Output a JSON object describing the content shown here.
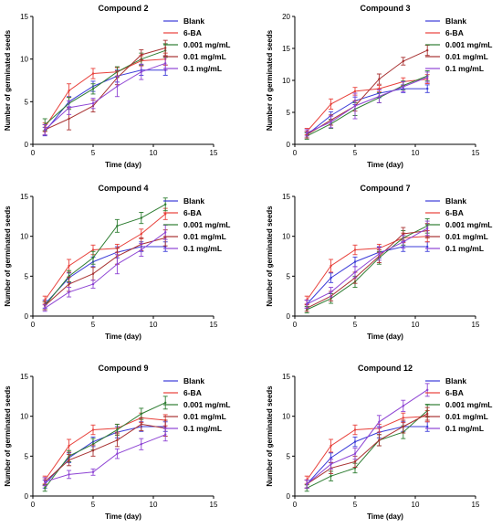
{
  "figure": {
    "legend_position": "top-right",
    "grid": false
  },
  "chart_data": [
    {
      "type": "line",
      "title": "Compound 2",
      "xlabel": "Time (day)",
      "ylabel": "Number of germinated seeds",
      "xlim": [
        0,
        15
      ],
      "ylim": [
        0,
        15
      ],
      "xticks": [
        0,
        5,
        10,
        15
      ],
      "yticks": [
        0,
        5,
        10,
        15
      ],
      "x": [
        1,
        3,
        5,
        7,
        9,
        11
      ],
      "series": [
        {
          "name": "Blank",
          "color": "#3b3bd8",
          "values": [
            1.5,
            5.0,
            6.8,
            8.0,
            8.7,
            8.7
          ],
          "errors": [
            0.5,
            0.6,
            0.6,
            0.7,
            0.6,
            0.6
          ]
        },
        {
          "name": "6-BA",
          "color": "#e8403a",
          "values": [
            2.0,
            6.3,
            8.3,
            8.5,
            9.8,
            10.0
          ],
          "errors": [
            0.5,
            0.8,
            0.6,
            0.5,
            0.6,
            0.7
          ]
        },
        {
          "name": "0.001 mg/mL",
          "color": "#2e7d32",
          "values": [
            2.3,
            4.8,
            6.5,
            8.5,
            10.0,
            11.0
          ],
          "errors": [
            0.7,
            0.7,
            0.6,
            0.6,
            0.7,
            0.8
          ]
        },
        {
          "name": "0.01 mg/mL",
          "color": "#a83232",
          "values": [
            1.7,
            3.0,
            4.5,
            7.8,
            10.5,
            11.3
          ],
          "errors": [
            0.6,
            1.3,
            0.7,
            0.8,
            0.6,
            0.9
          ]
        },
        {
          "name": "0.1 mg/mL",
          "color": "#8e44d4",
          "values": [
            1.7,
            4.3,
            4.8,
            6.8,
            8.5,
            9.5
          ],
          "errors": [
            0.6,
            0.8,
            0.6,
            1.2,
            0.9,
            0.8
          ]
        }
      ]
    },
    {
      "type": "line",
      "title": "Compound 3",
      "xlabel": "Time (day)",
      "ylabel": "Number of germinated seeds",
      "xlim": [
        0,
        15
      ],
      "ylim": [
        0,
        20
      ],
      "xticks": [
        0,
        5,
        10,
        15
      ],
      "yticks": [
        0,
        5,
        10,
        15,
        20
      ],
      "x": [
        1,
        3,
        5,
        7,
        9,
        11
      ],
      "series": [
        {
          "name": "Blank",
          "color": "#3b3bd8",
          "values": [
            1.5,
            4.5,
            6.8,
            8.0,
            8.7,
            8.7
          ],
          "errors": [
            0.5,
            0.6,
            0.6,
            0.7,
            0.6,
            0.6
          ]
        },
        {
          "name": "6-BA",
          "color": "#e8403a",
          "values": [
            2.0,
            6.3,
            8.3,
            8.7,
            9.8,
            10.2
          ],
          "errors": [
            0.5,
            0.8,
            0.6,
            0.5,
            0.6,
            0.7
          ]
        },
        {
          "name": "0.001 mg/mL",
          "color": "#2e7d32",
          "values": [
            1.3,
            3.2,
            5.5,
            7.3,
            9.2,
            10.7
          ],
          "errors": [
            0.5,
            0.7,
            1.0,
            0.8,
            0.7,
            0.8
          ]
        },
        {
          "name": "0.01 mg/mL",
          "color": "#a83232",
          "values": [
            1.5,
            3.8,
            6.0,
            10.2,
            13.0,
            14.7
          ],
          "errors": [
            0.5,
            0.8,
            0.8,
            0.8,
            0.6,
            0.8
          ]
        },
        {
          "name": "0.1 mg/mL",
          "color": "#8e44d4",
          "values": [
            1.8,
            3.5,
            6.0,
            7.5,
            9.0,
            10.5
          ],
          "errors": [
            0.5,
            0.9,
            2.0,
            1.0,
            0.8,
            0.8
          ]
        }
      ]
    },
    {
      "type": "line",
      "title": "Compound 4",
      "xlabel": "Time (day)",
      "ylabel": "Number of germinated seeds",
      "xlim": [
        0,
        15
      ],
      "ylim": [
        0,
        15
      ],
      "xticks": [
        0,
        5,
        10,
        15
      ],
      "yticks": [
        0,
        5,
        10,
        15
      ],
      "x": [
        1,
        3,
        5,
        7,
        9,
        11
      ],
      "series": [
        {
          "name": "Blank",
          "color": "#3b3bd8",
          "values": [
            1.5,
            4.8,
            6.8,
            8.0,
            8.7,
            8.7
          ],
          "errors": [
            0.5,
            0.6,
            0.6,
            0.7,
            0.6,
            0.6
          ]
        },
        {
          "name": "6-BA",
          "color": "#e8403a",
          "values": [
            2.0,
            6.3,
            8.3,
            8.5,
            10.3,
            12.8
          ],
          "errors": [
            0.5,
            0.8,
            0.6,
            0.5,
            0.6,
            0.7
          ]
        },
        {
          "name": "0.001 mg/mL",
          "color": "#2e7d32",
          "values": [
            1.3,
            5.0,
            7.3,
            11.3,
            12.3,
            14.0
          ],
          "errors": [
            0.5,
            0.7,
            0.8,
            0.8,
            0.7,
            0.8
          ]
        },
        {
          "name": "0.01 mg/mL",
          "color": "#a83232",
          "values": [
            1.3,
            4.0,
            5.3,
            7.5,
            9.0,
            9.8
          ],
          "errors": [
            0.5,
            0.9,
            0.8,
            1.0,
            0.8,
            1.0
          ]
        },
        {
          "name": "0.1 mg/mL",
          "color": "#8e44d4",
          "values": [
            1.0,
            3.0,
            4.0,
            6.5,
            8.3,
            10.5
          ],
          "errors": [
            0.4,
            0.6,
            0.5,
            1.2,
            0.8,
            0.9
          ]
        }
      ]
    },
    {
      "type": "line",
      "title": "Compound 7",
      "xlabel": "Time (day)",
      "ylabel": "Number of germinated seeds",
      "xlim": [
        0,
        15
      ],
      "ylim": [
        0,
        15
      ],
      "xticks": [
        0,
        5,
        10,
        15
      ],
      "yticks": [
        0,
        5,
        10,
        15
      ],
      "x": [
        1,
        3,
        5,
        7,
        9,
        11
      ],
      "series": [
        {
          "name": "Blank",
          "color": "#3b3bd8",
          "values": [
            1.5,
            4.8,
            6.8,
            8.0,
            8.7,
            8.7
          ],
          "errors": [
            0.5,
            0.6,
            0.6,
            0.7,
            0.6,
            0.6
          ]
        },
        {
          "name": "6-BA",
          "color": "#e8403a",
          "values": [
            2.0,
            6.3,
            8.3,
            8.5,
            9.8,
            10.0
          ],
          "errors": [
            0.5,
            0.8,
            0.6,
            0.5,
            0.6,
            0.7
          ]
        },
        {
          "name": "0.001 mg/mL",
          "color": "#2e7d32",
          "values": [
            0.8,
            2.2,
            4.3,
            7.3,
            9.8,
            11.3
          ],
          "errors": [
            0.4,
            0.6,
            0.7,
            0.8,
            0.9,
            0.9
          ]
        },
        {
          "name": "0.01 mg/mL",
          "color": "#a83232",
          "values": [
            1.0,
            2.5,
            4.8,
            7.5,
            10.3,
            10.7
          ],
          "errors": [
            0.4,
            0.6,
            0.7,
            0.8,
            0.8,
            0.9
          ]
        },
        {
          "name": "0.1 mg/mL",
          "color": "#8e44d4",
          "values": [
            1.5,
            3.0,
            5.5,
            7.8,
            9.3,
            11.0
          ],
          "errors": [
            0.5,
            0.6,
            0.7,
            0.8,
            0.8,
            0.9
          ]
        }
      ]
    },
    {
      "type": "line",
      "title": "Compound 9",
      "xlabel": "Time (day)",
      "ylabel": "Number of germinated seeds",
      "xlim": [
        0,
        15
      ],
      "ylim": [
        0,
        15
      ],
      "xticks": [
        0,
        5,
        10,
        15
      ],
      "yticks": [
        0,
        5,
        10,
        15
      ],
      "x": [
        1,
        3,
        5,
        7,
        9,
        11
      ],
      "series": [
        {
          "name": "Blank",
          "color": "#3b3bd8",
          "values": [
            1.5,
            4.8,
            6.8,
            8.0,
            8.7,
            8.7
          ],
          "errors": [
            0.5,
            0.6,
            0.6,
            0.7,
            0.6,
            0.6
          ]
        },
        {
          "name": "6-BA",
          "color": "#e8403a",
          "values": [
            2.0,
            6.3,
            8.3,
            8.5,
            9.8,
            9.5
          ],
          "errors": [
            0.5,
            0.8,
            0.6,
            0.5,
            0.6,
            0.7
          ]
        },
        {
          "name": "0.001 mg/mL",
          "color": "#2e7d32",
          "values": [
            1.0,
            5.0,
            6.5,
            8.3,
            10.3,
            11.7
          ],
          "errors": [
            0.4,
            0.7,
            0.7,
            0.7,
            0.7,
            0.8
          ]
        },
        {
          "name": "0.01 mg/mL",
          "color": "#a83232",
          "values": [
            1.8,
            4.5,
            5.7,
            7.0,
            9.0,
            8.5
          ],
          "errors": [
            0.5,
            0.7,
            0.7,
            0.8,
            0.8,
            1.0
          ]
        },
        {
          "name": "0.1 mg/mL",
          "color": "#8e44d4",
          "values": [
            1.8,
            2.7,
            3.0,
            5.3,
            6.5,
            7.7
          ],
          "errors": [
            0.5,
            0.5,
            0.4,
            0.6,
            0.7,
            0.8
          ]
        }
      ]
    },
    {
      "type": "line",
      "title": "Compound 12",
      "xlabel": "Time (day)",
      "ylabel": "Number of germinated seeds",
      "xlim": [
        0,
        15
      ],
      "ylim": [
        0,
        15
      ],
      "xticks": [
        0,
        5,
        10,
        15
      ],
      "yticks": [
        0,
        5,
        10,
        15
      ],
      "x": [
        1,
        3,
        5,
        7,
        9,
        11
      ],
      "series": [
        {
          "name": "Blank",
          "color": "#3b3bd8",
          "values": [
            1.5,
            4.8,
            6.8,
            8.0,
            8.7,
            8.7
          ],
          "errors": [
            0.5,
            0.6,
            0.6,
            0.7,
            0.6,
            0.6
          ]
        },
        {
          "name": "6-BA",
          "color": "#e8403a",
          "values": [
            2.0,
            6.3,
            8.3,
            8.5,
            9.8,
            10.0
          ],
          "errors": [
            0.5,
            0.8,
            0.6,
            0.5,
            0.6,
            0.7
          ]
        },
        {
          "name": "0.001 mg/mL",
          "color": "#2e7d32",
          "values": [
            1.0,
            2.5,
            3.5,
            7.0,
            8.0,
            10.7
          ],
          "errors": [
            0.4,
            0.6,
            0.6,
            0.7,
            0.8,
            0.8
          ]
        },
        {
          "name": "0.01 mg/mL",
          "color": "#a83232",
          "values": [
            1.5,
            3.5,
            4.3,
            7.0,
            8.7,
            10.3
          ],
          "errors": [
            0.5,
            0.7,
            0.7,
            0.7,
            0.8,
            0.8
          ]
        },
        {
          "name": "0.1 mg/mL",
          "color": "#8e44d4",
          "values": [
            1.5,
            4.0,
            5.3,
            9.3,
            11.3,
            13.3
          ],
          "errors": [
            0.5,
            0.6,
            0.7,
            0.8,
            0.7,
            0.8
          ]
        }
      ]
    }
  ]
}
